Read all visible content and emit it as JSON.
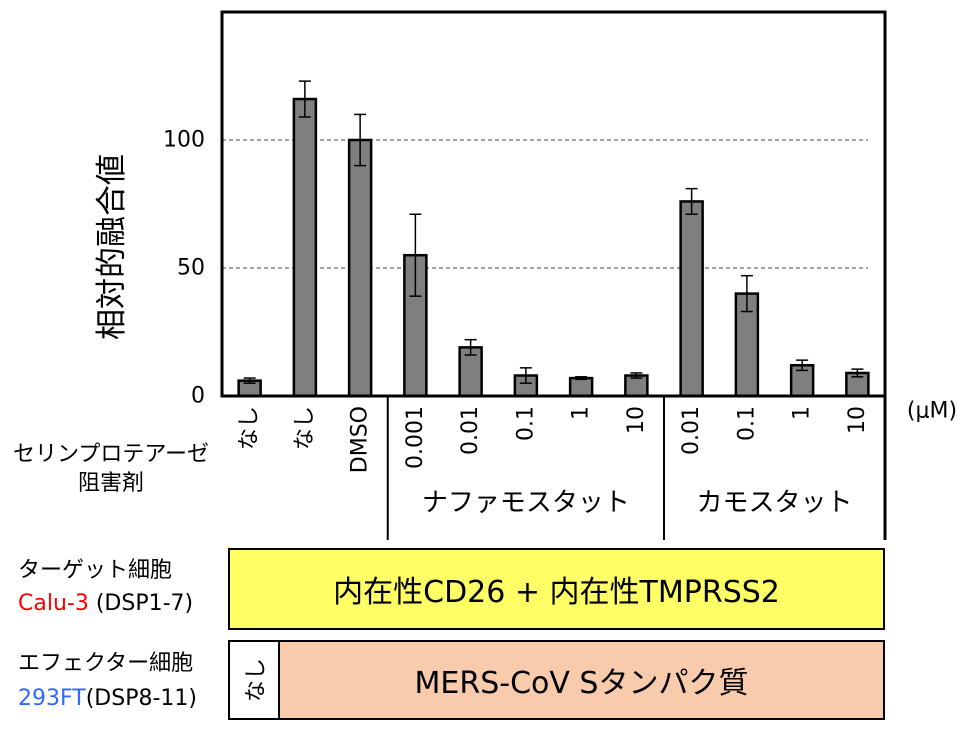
{
  "chart_data": {
    "type": "bar",
    "ylabel": "相対的融合値",
    "ylim": [
      0,
      150
    ],
    "yticks": [
      0,
      50,
      100
    ],
    "grid": true,
    "gridlines": [
      50,
      100
    ],
    "categories": [
      "なし",
      "なし",
      "DMSO",
      "0.001",
      "0.01",
      "0.1",
      "1",
      "10",
      "0.01",
      "0.1",
      "1",
      "10"
    ],
    "values": [
      6,
      116,
      100,
      55,
      19,
      8,
      7,
      8,
      76,
      40,
      12,
      9
    ],
    "errors": [
      1,
      7,
      10,
      16,
      3,
      3,
      0.5,
      1,
      5,
      7,
      2,
      1.5
    ],
    "category_groups": [
      {
        "label": "ナファモスタット",
        "first": 3,
        "last": 7
      },
      {
        "label": "カモスタット",
        "first": 8,
        "last": 11
      }
    ],
    "category_unit": "(μM)",
    "xlabel": [
      "セリンプロテアーゼ",
      "阻害剤"
    ],
    "bar_color": "#7f7f7f"
  },
  "target_cells": {
    "label": "ターゲット細胞",
    "cell_line": "Calu-3",
    "reporter": " (DSP1-7)",
    "cell_line_color": "#ff0000",
    "box_text": "内在性CD26 + 内在性TMPRSS2",
    "box_color": "#ffff66"
  },
  "effector_cells": {
    "label": "エフェクター細胞",
    "cell_line": "293FT",
    "reporter": "(DSP8-11)",
    "cell_line_color": "#3366ff",
    "none_text": "なし",
    "box_text": "MERS-CoV Sタンパク質",
    "box_color": "#f8cbad"
  }
}
